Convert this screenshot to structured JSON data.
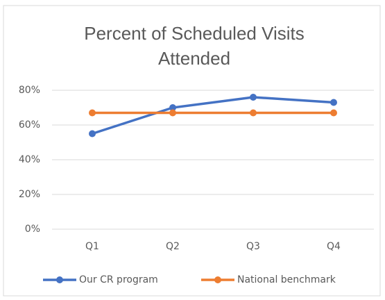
{
  "chart_data": {
    "type": "line",
    "title": "Percent of Scheduled Visits Attended",
    "categories": [
      "Q1",
      "Q2",
      "Q3",
      "Q4"
    ],
    "series": [
      {
        "name": "Our CR program",
        "color": "#4472c4",
        "values": [
          55,
          70,
          76,
          73
        ]
      },
      {
        "name": "National benchmark",
        "color": "#ed7d31",
        "values": [
          67,
          67,
          67,
          67
        ]
      }
    ],
    "ylim": [
      0,
      80
    ],
    "yticks": [
      {
        "value": 0,
        "label": "0%"
      },
      {
        "value": 20,
        "label": "20%"
      },
      {
        "value": 40,
        "label": "40%"
      },
      {
        "value": 60,
        "label": "60%"
      },
      {
        "value": 80,
        "label": "80%"
      }
    ],
    "grid": true,
    "legend": "bottom"
  }
}
